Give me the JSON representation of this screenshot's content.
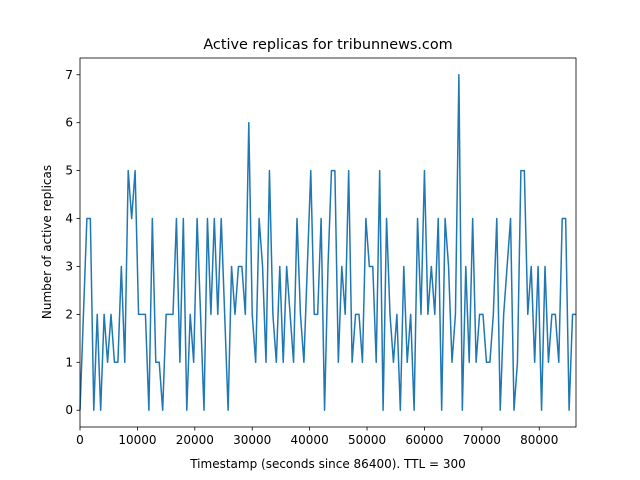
{
  "chart_data": {
    "type": "line",
    "title": "Active replicas for tribunnews.com",
    "x_label": "Timestamp (seconds since 86400). TTL = 300",
    "y_label": "Number of active replicas",
    "x": [
      0,
      600,
      1200,
      1800,
      2400,
      3000,
      3600,
      4200,
      4800,
      5400,
      6000,
      6600,
      7200,
      7800,
      8400,
      9000,
      9600,
      10200,
      10800,
      11400,
      12000,
      12600,
      13200,
      13800,
      14400,
      15000,
      15600,
      16200,
      16800,
      17400,
      18000,
      18600,
      19200,
      19800,
      20400,
      21000,
      21600,
      22200,
      22800,
      23400,
      24000,
      24600,
      25200,
      25800,
      26400,
      27000,
      27600,
      28200,
      28800,
      29400,
      30000,
      30600,
      31200,
      31800,
      32400,
      33000,
      33600,
      34200,
      34800,
      35400,
      36000,
      36600,
      37200,
      37800,
      38400,
      39000,
      39600,
      40200,
      40800,
      41400,
      42000,
      42600,
      43200,
      43800,
      44400,
      45000,
      45600,
      46200,
      46800,
      47400,
      48000,
      48600,
      49200,
      49800,
      50400,
      51000,
      51600,
      52200,
      52800,
      53400,
      54000,
      54600,
      55200,
      55800,
      56400,
      57000,
      57600,
      58200,
      58800,
      59400,
      60000,
      60600,
      61200,
      61800,
      62400,
      63000,
      63600,
      64200,
      64800,
      65400,
      66000,
      66600,
      67200,
      67800,
      68400,
      69000,
      69600,
      70200,
      70800,
      71400,
      72000,
      72600,
      73200,
      73800,
      74400,
      75000,
      75600,
      76200,
      76800,
      77400,
      78000,
      78600,
      79200,
      79800,
      80400,
      81000,
      81600,
      82200,
      82800,
      83400,
      84000,
      84600,
      85200,
      85800,
      86400
    ],
    "series": [
      {
        "name": "tribunnews.com",
        "color": "#1f77b4",
        "values": [
          0,
          2,
          4,
          4,
          0,
          2,
          0,
          2,
          1,
          2,
          1,
          1,
          3,
          1,
          5,
          4,
          5,
          2,
          2,
          2,
          0,
          4,
          1,
          1,
          0,
          2,
          2,
          2,
          4,
          1,
          4,
          0,
          2,
          1,
          4,
          2,
          0,
          4,
          2,
          4,
          2,
          4,
          2,
          0,
          3,
          2,
          3,
          3,
          2,
          6,
          2,
          1,
          4,
          3,
          1,
          5,
          2,
          1,
          3,
          1,
          3,
          2,
          1,
          4,
          2,
          1,
          3,
          5,
          2,
          2,
          4,
          0,
          3,
          5,
          5,
          1,
          3,
          2,
          5,
          1,
          2,
          2,
          1,
          4,
          3,
          3,
          1,
          5,
          0,
          4,
          2,
          1,
          2,
          0,
          3,
          1,
          2,
          0,
          4,
          2,
          5,
          2,
          3,
          2,
          4,
          0,
          4,
          3,
          1,
          2,
          7,
          0,
          3,
          1,
          4,
          1,
          2,
          2,
          1,
          1,
          2,
          4,
          0,
          2,
          3,
          4,
          0,
          1,
          5,
          5,
          2,
          3,
          1,
          3,
          0,
          3,
          1,
          2,
          2,
          1,
          4,
          4,
          0,
          2,
          2
        ]
      }
    ],
    "xlim": [
      0,
      86400
    ],
    "ylim": [
      -0.35,
      7.35
    ],
    "xticks": [
      0,
      10000,
      20000,
      30000,
      40000,
      50000,
      60000,
      70000,
      80000
    ],
    "yticks": [
      0,
      1,
      2,
      3,
      4,
      5,
      6,
      7
    ]
  }
}
